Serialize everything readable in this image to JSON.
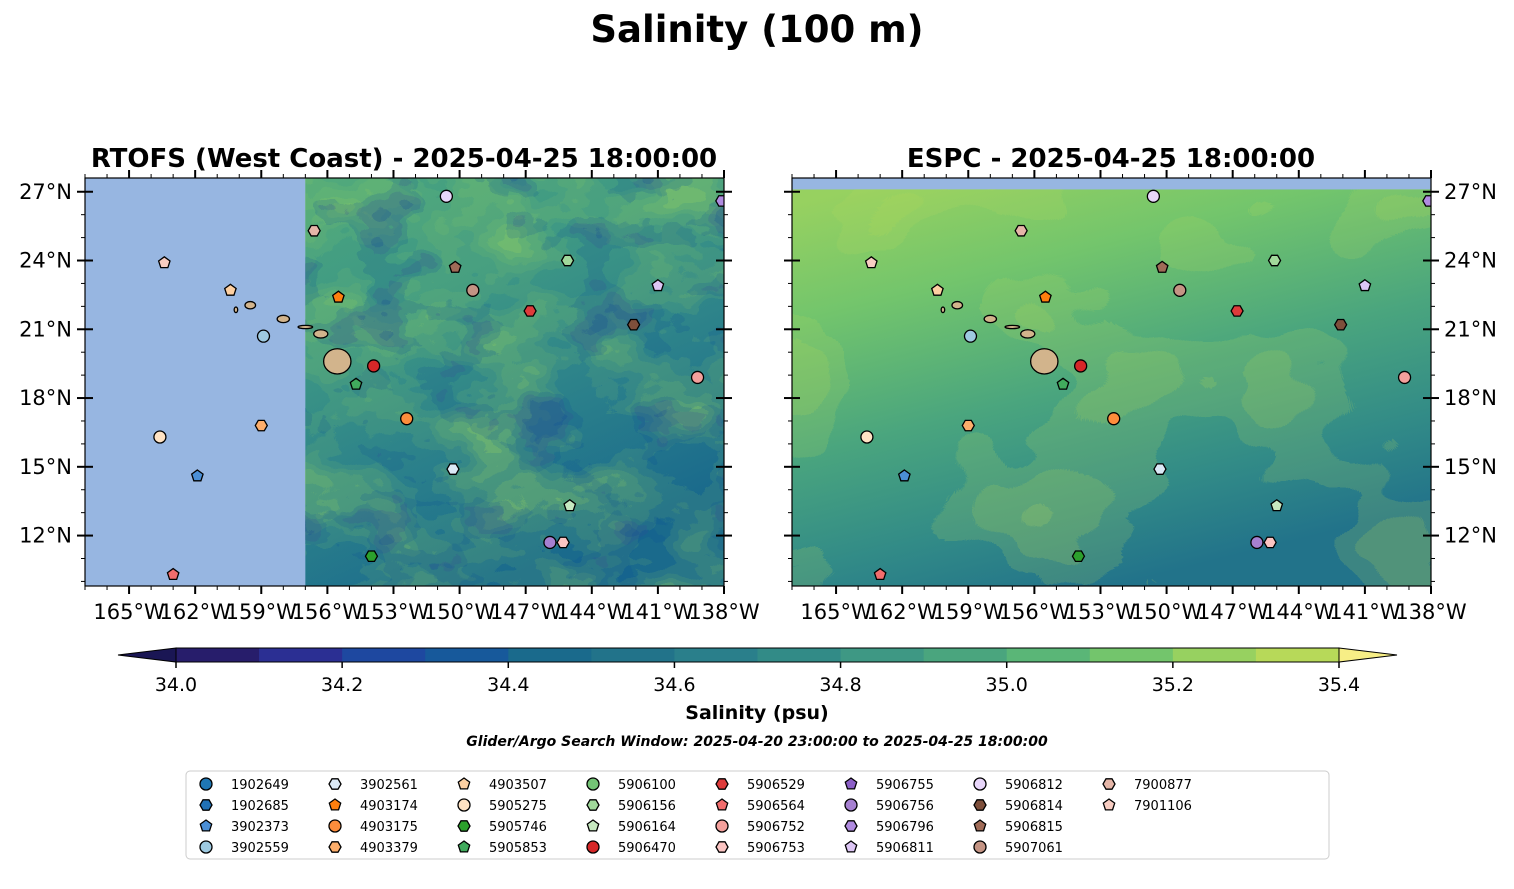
{
  "figure": {
    "title": "Salinity (100 m)",
    "search_window_text": "Glider/Argo Search Window: 2025-04-20 23:00:00 to 2025-04-25 18:00:00"
  },
  "colors": {
    "land": "#d2b48c",
    "nodata": "#97b6e1",
    "palette": [
      "#271d6b",
      "#2b2f93",
      "#1e48a0",
      "#17599b",
      "#1a6a8c",
      "#22738a",
      "#2a7f8b",
      "#328b87",
      "#3e9884",
      "#4aa57e",
      "#5ab677",
      "#73c56c",
      "#97d160",
      "#b7d959",
      "#d4e26c"
    ],
    "palette_under": "#1a1654",
    "palette_over": "#f7ee86"
  },
  "chart_data": {
    "type": "map",
    "panels": [
      {
        "id": "rtofs",
        "title": "RTOFS (West Coast) - 2025-04-25 18:00:00",
        "model_domain_west_lon": -157.0,
        "lon_range": [
          -167.0,
          -138.0
        ],
        "lat_range": [
          9.8,
          27.6
        ],
        "ytick_side": "left",
        "field_character": "eddying"
      },
      {
        "id": "espc",
        "title": "ESPC - 2025-04-25 18:00:00",
        "model_domain_north_lat": 27.1,
        "lon_range": [
          -167.0,
          -138.0
        ],
        "lat_range": [
          9.8,
          27.6
        ],
        "ytick_side": "right",
        "field_character": "smooth"
      }
    ],
    "x_ticks": [
      -165,
      -162,
      -159,
      -156,
      -153,
      -150,
      -147,
      -144,
      -141,
      -138
    ],
    "x_tick_labels": [
      "165°W",
      "162°W",
      "159°W",
      "156°W",
      "153°W",
      "150°W",
      "147°W",
      "144°W",
      "141°W",
      "138°W"
    ],
    "y_ticks": [
      12,
      15,
      18,
      21,
      24,
      27
    ],
    "y_tick_labels": [
      "12°N",
      "15°N",
      "18°N",
      "21°N",
      "24°N",
      "27°N"
    ],
    "colorbar": {
      "label": "Salinity (psu)",
      "min": 34.0,
      "max": 35.4,
      "step": 0.1,
      "extend": "both",
      "ticks": [
        34.0,
        34.2,
        34.4,
        34.6,
        34.8,
        35.0,
        35.2,
        35.4
      ],
      "tick_labels": [
        "34.0",
        "34.2",
        "34.4",
        "34.6",
        "34.8",
        "35.0",
        "35.2",
        "35.4"
      ]
    },
    "islands": [
      {
        "name": "Hawaii",
        "lon": -155.55,
        "lat": 19.6,
        "rx": 0.62,
        "ry": 0.55
      },
      {
        "name": "Maui",
        "lon": -156.3,
        "lat": 20.8,
        "rx": 0.32,
        "ry": 0.18
      },
      {
        "name": "Molokai",
        "lon": -157.0,
        "lat": 21.1,
        "rx": 0.33,
        "ry": 0.07
      },
      {
        "name": "Oahu",
        "lon": -158.0,
        "lat": 21.45,
        "rx": 0.28,
        "ry": 0.16
      },
      {
        "name": "Kauai",
        "lon": -159.5,
        "lat": 22.05,
        "rx": 0.24,
        "ry": 0.16
      },
      {
        "name": "Niihau",
        "lon": -160.15,
        "lat": 21.85,
        "rx": 0.08,
        "ry": 0.12
      }
    ],
    "legend": [
      {
        "id": "1902649",
        "color": "#1f77b4",
        "marker": "circle",
        "lon": null,
        "lat": null
      },
      {
        "id": "1902685",
        "color": "#2171b5",
        "marker": "hexagon",
        "lon": null,
        "lat": null
      },
      {
        "id": "3902373",
        "color": "#4b8fd6",
        "marker": "pentagon",
        "lon": -161.9,
        "lat": 14.6
      },
      {
        "id": "3902559",
        "color": "#9ecae1",
        "marker": "circle",
        "lon": -158.9,
        "lat": 20.7
      },
      {
        "id": "3902561",
        "color": "#dbe9f6",
        "marker": "hexagon",
        "lon": -150.3,
        "lat": 14.9
      },
      {
        "id": "4903174",
        "color": "#ff7f0e",
        "marker": "pentagon",
        "lon": -155.5,
        "lat": 22.4
      },
      {
        "id": "4903175",
        "color": "#fd8d3c",
        "marker": "circle",
        "lon": -152.4,
        "lat": 17.1
      },
      {
        "id": "4903379",
        "color": "#fdae6b",
        "marker": "hexagon",
        "lon": -159.0,
        "lat": 16.8
      },
      {
        "id": "4903507",
        "color": "#fdd0a2",
        "marker": "pentagon",
        "lon": -160.4,
        "lat": 22.7
      },
      {
        "id": "5905275",
        "color": "#ffe3c4",
        "marker": "circle",
        "lon": -163.6,
        "lat": 16.3
      },
      {
        "id": "5905746",
        "color": "#2ca02c",
        "marker": "hexagon",
        "lon": -154.0,
        "lat": 11.1
      },
      {
        "id": "5905853",
        "color": "#41ab5d",
        "marker": "pentagon",
        "lon": -154.7,
        "lat": 18.6
      },
      {
        "id": "5906100",
        "color": "#74c476",
        "marker": "circle",
        "lon": null,
        "lat": null
      },
      {
        "id": "5906156",
        "color": "#a1d99b",
        "marker": "hexagon",
        "lon": -145.1,
        "lat": 24.0
      },
      {
        "id": "5906164",
        "color": "#c7e9c0",
        "marker": "pentagon",
        "lon": -145.0,
        "lat": 13.3
      },
      {
        "id": "5906470",
        "color": "#d62728",
        "marker": "circle",
        "lon": -153.9,
        "lat": 19.4
      },
      {
        "id": "5906529",
        "color": "#de3b3b",
        "marker": "hexagon",
        "lon": -146.8,
        "lat": 21.8
      },
      {
        "id": "5906564",
        "color": "#f26d6d",
        "marker": "pentagon",
        "lon": -163.0,
        "lat": 10.3
      },
      {
        "id": "5906752",
        "color": "#f4a09c",
        "marker": "circle",
        "lon": -139.2,
        "lat": 18.9
      },
      {
        "id": "5906753",
        "color": "#fbc4c2",
        "marker": "hexagon",
        "lon": -145.3,
        "lat": 11.7
      },
      {
        "id": "5906755",
        "color": "#8c5fc7",
        "marker": "pentagon",
        "lon": null,
        "lat": null
      },
      {
        "id": "5906756",
        "color": "#a680d1",
        "marker": "circle",
        "lon": -145.9,
        "lat": 11.7
      },
      {
        "id": "5906796",
        "color": "#b08be0",
        "marker": "hexagon",
        "lon": -138.1,
        "lat": 26.6
      },
      {
        "id": "5906811",
        "color": "#ddc6f5",
        "marker": "pentagon",
        "lon": -141.0,
        "lat": 22.9
      },
      {
        "id": "5906812",
        "color": "#e8d6fa",
        "marker": "circle",
        "lon": -150.6,
        "lat": 26.8
      },
      {
        "id": "5906814",
        "color": "#7e4f3b",
        "marker": "hexagon",
        "lon": -142.1,
        "lat": 21.2
      },
      {
        "id": "5906815",
        "color": "#a06b57",
        "marker": "pentagon",
        "lon": -150.2,
        "lat": 23.7
      },
      {
        "id": "5907061",
        "color": "#c49484",
        "marker": "circle",
        "lon": -149.4,
        "lat": 22.7
      },
      {
        "id": "7900877",
        "color": "#e5b6a8",
        "marker": "hexagon",
        "lon": -156.6,
        "lat": 25.3
      },
      {
        "id": "7901106",
        "color": "#f8cdc2",
        "marker": "pentagon",
        "lon": -163.4,
        "lat": 23.9
      }
    ]
  }
}
